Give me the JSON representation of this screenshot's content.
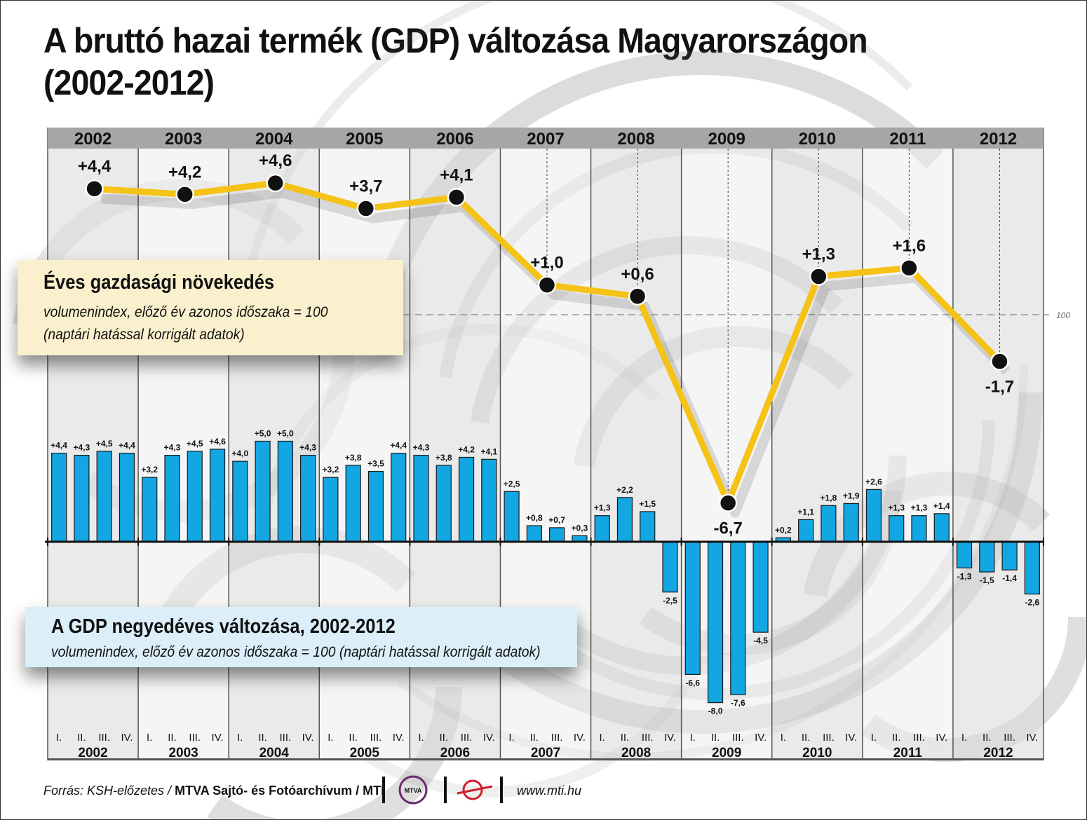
{
  "title": {
    "line1": "A bruttó hazai termék (GDP) változása Magyarországon",
    "line2": "(2002-2012)"
  },
  "annual_box": {
    "heading": "Éves gazdasági növekedés",
    "line1": "volumenindex, előző év azonos időszaka = 100",
    "line2": "(naptári hatással korrigált adatok)"
  },
  "quarterly_box": {
    "heading": "A GDP negyedéves változása, 2002-2012",
    "line1": "volumenindex, előző év azonos időszaka = 100 (naptári hatással korrigált adatok)"
  },
  "reference_label": "100",
  "footer": {
    "source": "Forrás: KSH-előzetes /",
    "organisation": "MTVA Sajtó- és Fotóarchívum / MTI",
    "url": "www.mti.hu",
    "logo_text": "MTVA"
  },
  "colors": {
    "line": "#f5c216",
    "bar": "#12a6e2",
    "header": "#a6a6a6",
    "annual_box": "#faf0cd",
    "quarter_box": "#dbeef9"
  },
  "chart_data": [
    {
      "type": "line",
      "title": "Éves gazdasági növekedés",
      "categories": [
        "2002",
        "2003",
        "2004",
        "2005",
        "2006",
        "2007",
        "2008",
        "2009",
        "2010",
        "2011",
        "2012"
      ],
      "values": [
        4.4,
        4.2,
        4.6,
        3.7,
        4.1,
        1.0,
        0.6,
        -6.7,
        1.3,
        1.6,
        -1.7
      ],
      "labels": [
        "+4,4",
        "+4,2",
        "+4,6",
        "+3,7",
        "+4,1",
        "+1,0",
        "+0,6",
        "-6,7",
        "+1,3",
        "+1,6",
        "-1,7"
      ],
      "ylim": [
        -7,
        5
      ]
    },
    {
      "type": "bar",
      "title": "A GDP negyedéves változása, 2002-2012",
      "quarter_labels": [
        "I.",
        "II.",
        "III.",
        "IV."
      ],
      "years": [
        "2002",
        "2003",
        "2004",
        "2005",
        "2006",
        "2007",
        "2008",
        "2009",
        "2010",
        "2011",
        "2012"
      ],
      "values": [
        4.4,
        4.3,
        4.5,
        4.4,
        3.2,
        4.3,
        4.5,
        4.6,
        4.0,
        5.0,
        5.0,
        4.3,
        3.2,
        3.8,
        3.5,
        4.4,
        4.3,
        3.8,
        4.2,
        4.1,
        2.5,
        0.8,
        0.7,
        0.3,
        1.3,
        2.2,
        1.5,
        -2.5,
        -6.6,
        -8.0,
        -7.6,
        -4.5,
        0.2,
        1.1,
        1.8,
        1.9,
        2.6,
        1.3,
        1.3,
        1.4,
        -1.3,
        -1.5,
        -1.4,
        -2.6
      ],
      "labels": [
        "+4,4",
        "+4,3",
        "+4,5",
        "+4,4",
        "+3,2",
        "+4,3",
        "+4,5",
        "+4,6",
        "+4,0",
        "+5,0",
        "+5,0",
        "+4,3",
        "+3,2",
        "+3,8",
        "+3,5",
        "+4,4",
        "+4,3",
        "+3,8",
        "+4,2",
        "+4,1",
        "+2,5",
        "+0,8",
        "+0,7",
        "+0,3",
        "+1,3",
        "+2,2",
        "+1,5",
        "-2,5",
        "-6,6",
        "-8,0",
        "-7,6",
        "-4,5",
        "+0,2",
        "+1,1",
        "+1,8",
        "+1,9",
        "+2,6",
        "+1,3",
        "+1,3",
        "+1,4",
        "-1,3",
        "-1,5",
        "-1,4",
        "-2,6"
      ],
      "ylim": [
        -8.5,
        5.5
      ]
    }
  ]
}
